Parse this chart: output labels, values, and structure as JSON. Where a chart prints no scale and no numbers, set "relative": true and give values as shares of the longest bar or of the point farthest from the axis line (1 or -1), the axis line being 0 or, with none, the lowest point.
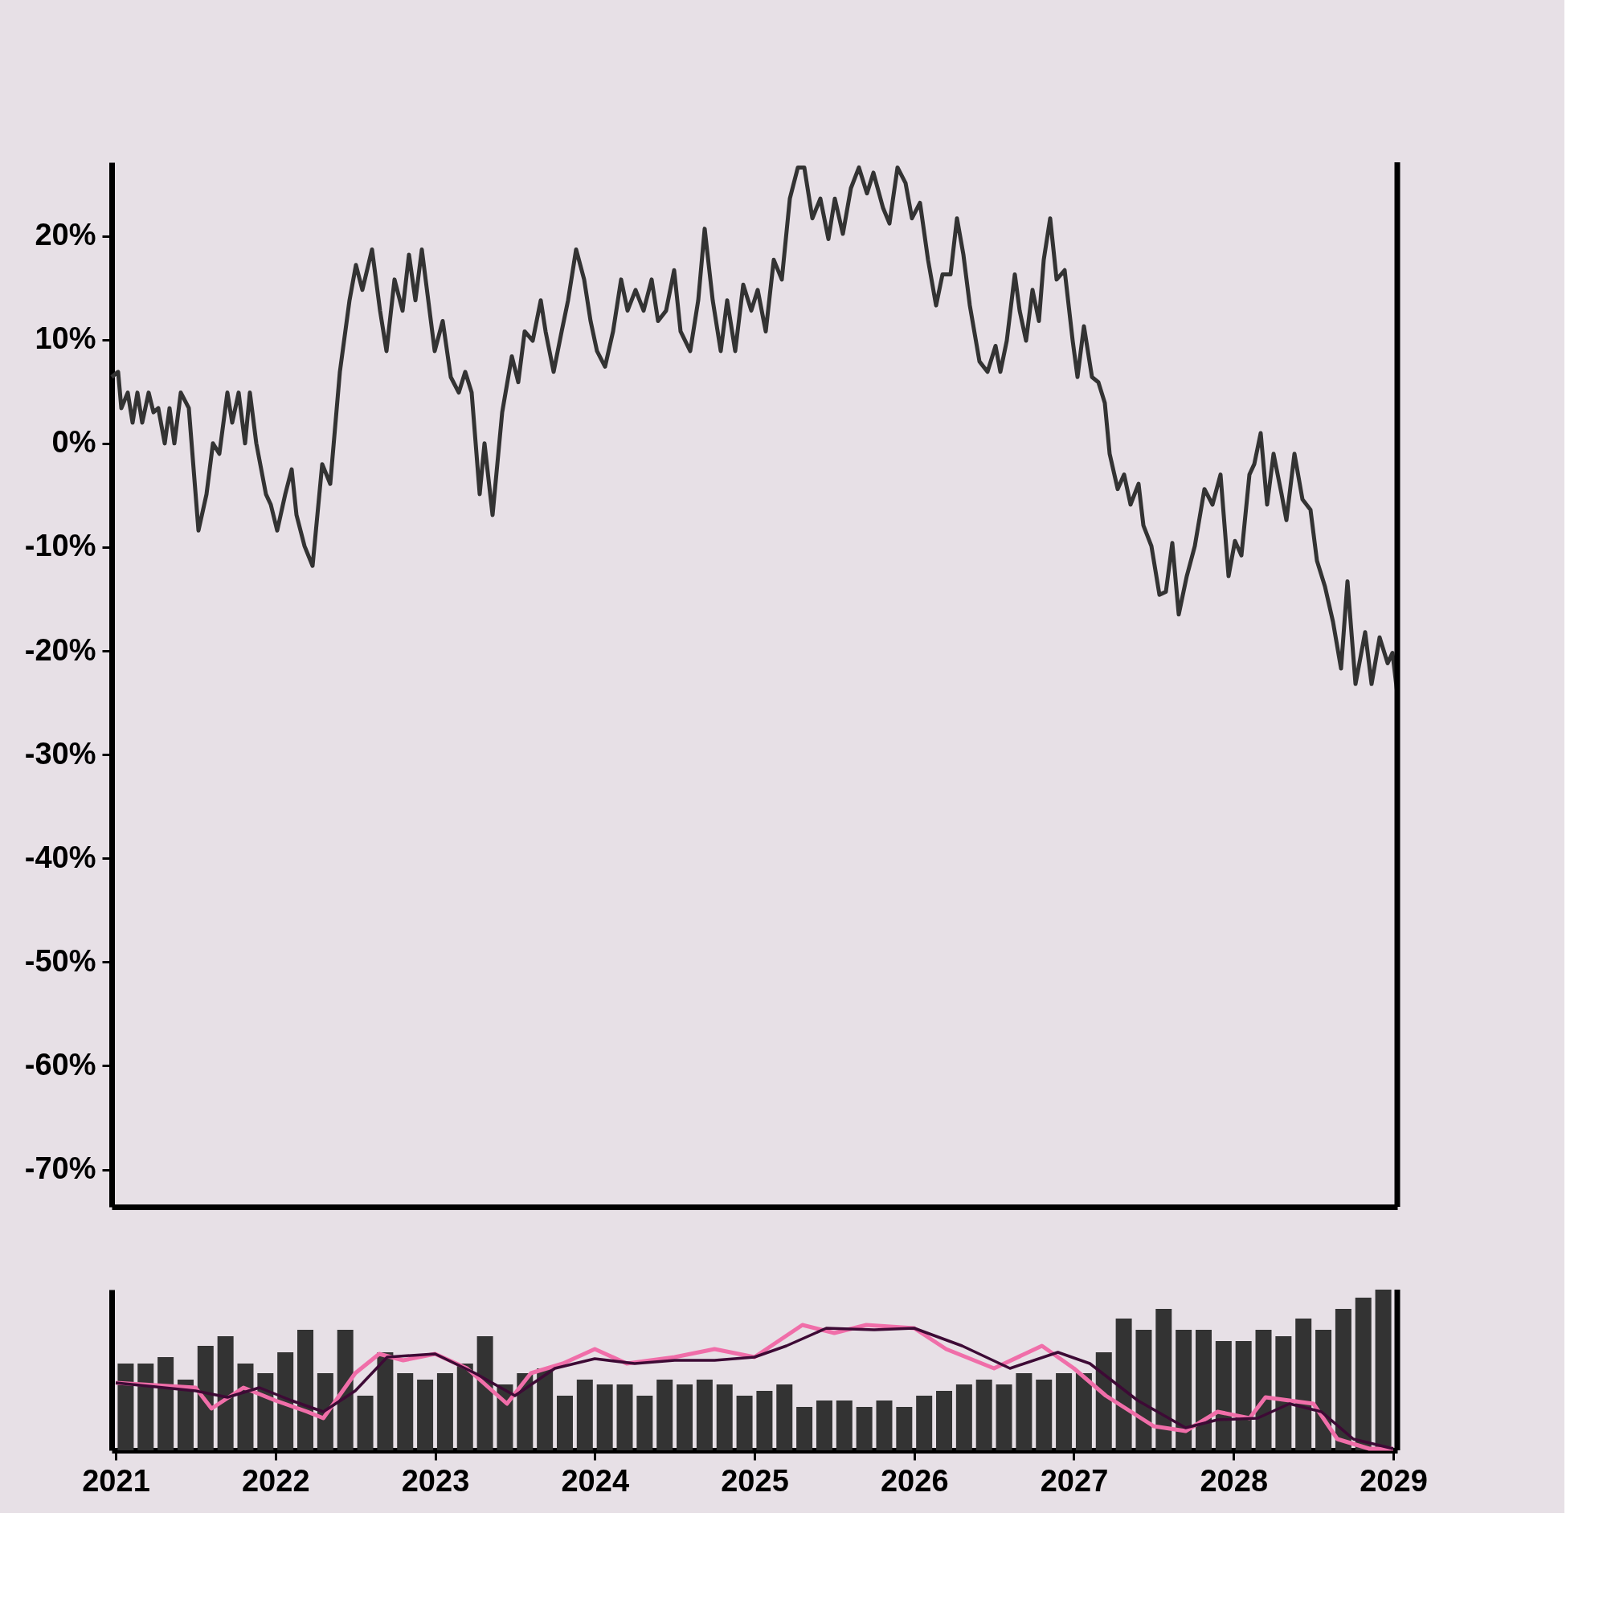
{
  "chart_data": [
    {
      "type": "line",
      "color": "#333333",
      "tick_labels": "y",
      "xlim": [
        2021,
        2029
      ],
      "xticks": [
        2021,
        2022,
        2023,
        2024,
        2025,
        2026,
        2027,
        2028,
        2029
      ],
      "ylim": [
        -73.6,
        27.1
      ],
      "yticks": [
        {
          "value": -70,
          "label": "-70%"
        },
        {
          "value": -60,
          "label": "-60%"
        },
        {
          "value": -50,
          "label": "-50%"
        },
        {
          "value": -40,
          "label": "-40%"
        },
        {
          "value": -30,
          "label": "-30%"
        },
        {
          "value": -20,
          "label": "-20%"
        },
        {
          "value": -10,
          "label": "-10%"
        },
        {
          "value": 0,
          "label": "0%"
        },
        {
          "value": 10,
          "label": "10%"
        },
        {
          "value": 20,
          "label": "20%"
        }
      ],
      "x": [
        2021.0,
        2021.04,
        2021.06,
        2021.1,
        2021.13,
        2021.16,
        2021.19,
        2021.23,
        2021.26,
        2021.29,
        2021.33,
        2021.36,
        2021.39,
        2021.43,
        2021.48,
        2021.54,
        2021.59,
        2021.63,
        2021.67,
        2021.72,
        2021.75,
        2021.79,
        2021.83,
        2021.86,
        2021.9,
        2021.96,
        2021.99,
        2022.03,
        2022.08,
        2022.12,
        2022.15,
        2022.2,
        2022.25,
        2022.31,
        2022.36,
        2022.42,
        2022.48,
        2022.52,
        2022.56,
        2022.62,
        2022.67,
        2022.71,
        2022.76,
        2022.81,
        2022.85,
        2022.89,
        2022.93,
        2022.97,
        2023.01,
        2023.06,
        2023.11,
        2023.16,
        2023.2,
        2023.24,
        2023.29,
        2023.32,
        2023.37,
        2023.43,
        2023.49,
        2023.53,
        2023.57,
        2023.62,
        2023.67,
        2023.7,
        2023.75,
        2023.8,
        2023.84,
        2023.89,
        2023.94,
        2023.98,
        2024.02,
        2024.07,
        2024.12,
        2024.17,
        2024.21,
        2024.26,
        2024.31,
        2024.36,
        2024.4,
        2024.45,
        2024.5,
        2024.54,
        2024.6,
        2024.65,
        2024.69,
        2024.74,
        2024.79,
        2024.83,
        2024.88,
        2024.93,
        2024.98,
        2025.02,
        2025.07,
        2025.12,
        2025.17,
        2025.22,
        2025.27,
        2025.31,
        2025.36,
        2025.41,
        2025.46,
        2025.5,
        2025.55,
        2025.6,
        2025.65,
        2025.7,
        2025.74,
        2025.8,
        2025.84,
        2025.89,
        2025.94,
        2025.98,
        2026.03,
        2026.08,
        2026.13,
        2026.17,
        2026.22,
        2026.26,
        2026.3,
        2026.34,
        2026.4,
        2026.45,
        2026.5,
        2026.53,
        2026.57,
        2026.62,
        2026.65,
        2026.69,
        2026.73,
        2026.77,
        2026.8,
        2026.84,
        2026.88,
        2026.93,
        2026.98,
        2027.01,
        2027.05,
        2027.1,
        2027.14,
        2027.18,
        2027.21,
        2027.26,
        2027.3,
        2027.34,
        2027.39,
        2027.42,
        2027.47,
        2027.52,
        2027.56,
        2027.6,
        2027.64,
        2027.69,
        2027.74,
        2027.8,
        2027.85,
        2027.9,
        2027.95,
        2027.99,
        2028.03,
        2028.08,
        2028.11,
        2028.15,
        2028.19,
        2028.23,
        2028.28,
        2028.31,
        2028.36,
        2028.41,
        2028.46,
        2028.5,
        2028.55,
        2028.6,
        2028.65,
        2028.69,
        2028.74,
        2028.8,
        2028.84,
        2028.89,
        2028.94,
        2028.97,
        2029.0
      ],
      "values": [
        6.4,
        6.9,
        3.4,
        4.9,
        2.0,
        4.9,
        2.0,
        4.9,
        3.0,
        3.4,
        0,
        3.4,
        0,
        4.9,
        3.4,
        -8.4,
        -4.9,
        0,
        -1.0,
        4.9,
        2.0,
        4.9,
        0,
        4.9,
        0,
        -4.9,
        -5.9,
        -8.4,
        -4.9,
        -2.5,
        -6.9,
        -9.9,
        -11.8,
        -2.0,
        -3.9,
        6.9,
        13.8,
        17.2,
        14.8,
        18.7,
        12.8,
        8.9,
        15.8,
        12.8,
        18.2,
        13.8,
        18.7,
        13.8,
        8.9,
        11.8,
        6.4,
        4.9,
        6.9,
        4.9,
        -4.9,
        0,
        -6.9,
        3.0,
        8.4,
        5.9,
        10.8,
        9.9,
        13.8,
        10.8,
        6.9,
        10.8,
        13.8,
        18.7,
        15.8,
        11.8,
        8.9,
        7.4,
        10.8,
        15.8,
        12.8,
        14.8,
        12.8,
        15.8,
        11.8,
        12.8,
        16.7,
        10.8,
        8.9,
        13.8,
        20.7,
        13.8,
        8.9,
        13.8,
        8.9,
        15.3,
        12.8,
        14.8,
        10.8,
        17.7,
        15.8,
        23.6,
        26.6,
        26.6,
        21.7,
        23.6,
        19.7,
        23.6,
        20.2,
        24.6,
        26.6,
        24.1,
        26.1,
        22.7,
        21.2,
        26.6,
        25.1,
        21.7,
        23.2,
        17.7,
        13.3,
        16.3,
        16.3,
        21.7,
        18.2,
        13.3,
        7.9,
        6.9,
        9.4,
        6.9,
        9.9,
        16.3,
        12.8,
        9.9,
        14.8,
        11.8,
        17.7,
        21.7,
        15.8,
        16.7,
        9.9,
        6.4,
        11.3,
        6.4,
        5.9,
        3.9,
        -1.0,
        -4.4,
        -3.0,
        -5.9,
        -3.9,
        -7.9,
        -9.9,
        -14.6,
        -14.3,
        -9.6,
        -16.5,
        -12.8,
        -9.9,
        -4.4,
        -5.9,
        -3.0,
        -12.8,
        -9.4,
        -10.8,
        -3.0,
        -2.0,
        1.0,
        -5.9,
        -1.0,
        -4.9,
        -7.4,
        -1.0,
        -5.4,
        -6.4,
        -11.3,
        -13.8,
        -17.2,
        -21.7,
        -13.3,
        -23.2,
        -18.2,
        -23.2,
        -18.7,
        -21.2,
        -20.2,
        -24.1
      ]
    },
    {
      "type": "bar",
      "relative": true,
      "tick_labels": "x",
      "xlim": [
        2021,
        2029
      ],
      "xticks": [
        2021,
        2022,
        2023,
        2024,
        2025,
        2026,
        2027,
        2028,
        2029
      ],
      "series": [
        {
          "type": "bar",
          "color": "#333333",
          "x": [
            2021.0625,
            2021.1875,
            2021.3125,
            2021.4375,
            2021.5625,
            2021.6875,
            2021.8125,
            2021.9375,
            2022.0625,
            2022.1875,
            2022.3125,
            2022.4375,
            2022.5625,
            2022.6875,
            2022.8125,
            2022.9375,
            2023.0625,
            2023.1875,
            2023.3125,
            2023.4375,
            2023.5625,
            2023.6875,
            2023.8125,
            2023.9375,
            2024.0625,
            2024.1875,
            2024.3125,
            2024.4375,
            2024.5625,
            2024.6875,
            2024.8125,
            2024.9375,
            2025.0625,
            2025.1875,
            2025.3125,
            2025.4375,
            2025.5625,
            2025.6875,
            2025.8125,
            2025.9375,
            2026.0625,
            2026.1875,
            2026.3125,
            2026.4375,
            2026.5625,
            2026.6875,
            2026.8125,
            2026.9375,
            2027.0625,
            2027.1875,
            2027.3125,
            2027.4375,
            2027.5625,
            2027.6875,
            2027.8125,
            2027.9375,
            2028.0625,
            2028.1875,
            2028.3125,
            2028.4375,
            2028.5625,
            2028.6875,
            2028.8125,
            2028.9375
          ],
          "values": [
            0.54,
            0.54,
            0.58,
            0.44,
            0.65,
            0.71,
            0.54,
            0.48,
            0.61,
            0.75,
            0.48,
            0.75,
            0.34,
            0.61,
            0.48,
            0.44,
            0.48,
            0.54,
            0.71,
            0.41,
            0.48,
            0.51,
            0.34,
            0.44,
            0.41,
            0.41,
            0.34,
            0.44,
            0.41,
            0.44,
            0.41,
            0.34,
            0.37,
            0.41,
            0.27,
            0.31,
            0.31,
            0.27,
            0.31,
            0.27,
            0.34,
            0.37,
            0.41,
            0.44,
            0.41,
            0.48,
            0.44,
            0.48,
            0.48,
            0.61,
            0.82,
            0.75,
            0.88,
            0.75,
            0.75,
            0.68,
            0.68,
            0.75,
            0.71,
            0.82,
            0.75,
            0.88,
            0.95,
            1
          ]
        },
        {
          "type": "line",
          "color": "#f06ea9",
          "x": [
            2021.0,
            2021.5,
            2021.6,
            2021.8,
            2022.0,
            2022.2,
            2022.3,
            2022.5,
            2022.65,
            2022.8,
            2023.0,
            2023.2,
            2023.45,
            2023.6,
            2023.8,
            2024.0,
            2024.2,
            2024.5,
            2024.75,
            2025.0,
            2025.3,
            2025.5,
            2025.7,
            2026.0,
            2026.2,
            2026.5,
            2026.8,
            2027.0,
            2027.2,
            2027.5,
            2027.7,
            2027.9,
            2028.1,
            2028.2,
            2028.5,
            2028.65,
            2028.85,
            2029.0
          ],
          "values": [
            0.42,
            0.39,
            0.26,
            0.39,
            0.31,
            0.24,
            0.2,
            0.48,
            0.6,
            0.56,
            0.6,
            0.51,
            0.29,
            0.48,
            0.54,
            0.63,
            0.54,
            0.58,
            0.63,
            0.58,
            0.78,
            0.73,
            0.78,
            0.76,
            0.63,
            0.51,
            0.65,
            0.51,
            0.34,
            0.15,
            0.12,
            0.24,
            0.2,
            0.33,
            0.29,
            0.07,
            0.01,
            0.01
          ]
        },
        {
          "type": "line",
          "color": "#3d0a35",
          "x": [
            2021.0,
            2021.5,
            2021.7,
            2021.9,
            2022.1,
            2022.3,
            2022.5,
            2022.7,
            2023.0,
            2023.25,
            2023.5,
            2023.75,
            2024.0,
            2024.25,
            2024.5,
            2024.75,
            2025.0,
            2025.2,
            2025.45,
            2025.75,
            2026.0,
            2026.3,
            2026.6,
            2026.9,
            2027.1,
            2027.4,
            2027.7,
            2027.9,
            2028.15,
            2028.35,
            2028.55,
            2028.75,
            2029.0
          ],
          "values": [
            0.42,
            0.37,
            0.33,
            0.39,
            0.31,
            0.24,
            0.37,
            0.58,
            0.6,
            0.48,
            0.34,
            0.51,
            0.57,
            0.54,
            0.56,
            0.56,
            0.58,
            0.65,
            0.76,
            0.75,
            0.76,
            0.65,
            0.51,
            0.61,
            0.54,
            0.31,
            0.14,
            0.19,
            0.2,
            0.29,
            0.24,
            0.07,
            0.01
          ]
        }
      ]
    }
  ]
}
